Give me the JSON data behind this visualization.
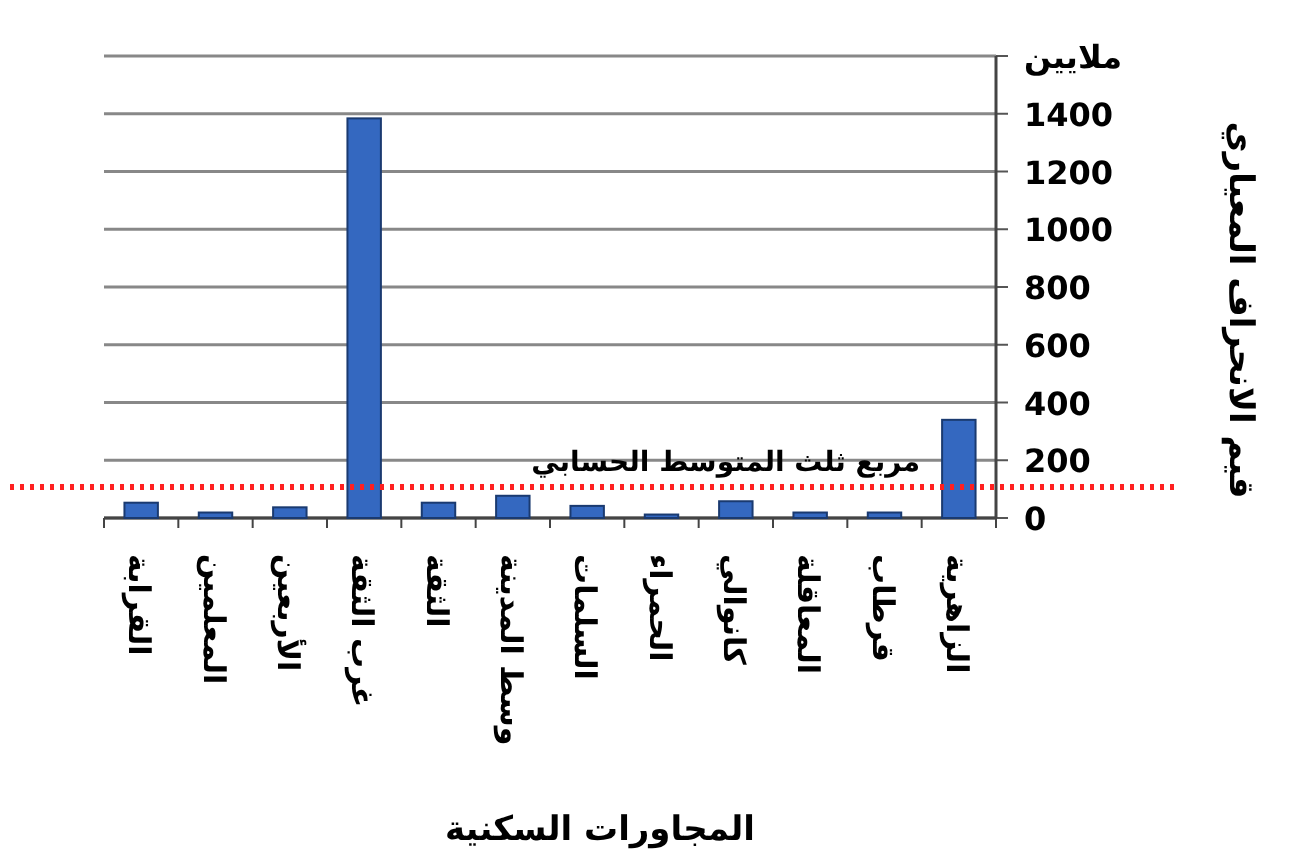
{
  "chart_data": {
    "type": "bar",
    "xlabel": "المجاورات السكنية",
    "ylabel": "قيم الانحراف المعياري",
    "categories": [
      "القرابة",
      "المعلمين",
      "الأربعين",
      "غرب الثقة",
      "الثقة",
      "وسط المدينة",
      "السلمات",
      "الحمراء",
      "كانوالي",
      "المعاقلة",
      "قرطاب",
      "الزاهرية"
    ],
    "values": [
      53,
      19,
      37,
      1384,
      53,
      77,
      42,
      12,
      58,
      19,
      19,
      340
    ],
    "color": "#3468c0",
    "ylim": [
      0,
      1600
    ],
    "yticks": [
      0,
      200,
      400,
      600,
      800,
      1000,
      1200,
      1400,
      {
        "value": 1600,
        "label": "ملايين"
      }
    ],
    "grid": "y",
    "ref_lines": [
      {
        "axis": "y",
        "value": 107,
        "label": "مربع ثلث المتوسط الحسابي",
        "color": "#ff2020",
        "line_style": "dotted"
      }
    ]
  }
}
